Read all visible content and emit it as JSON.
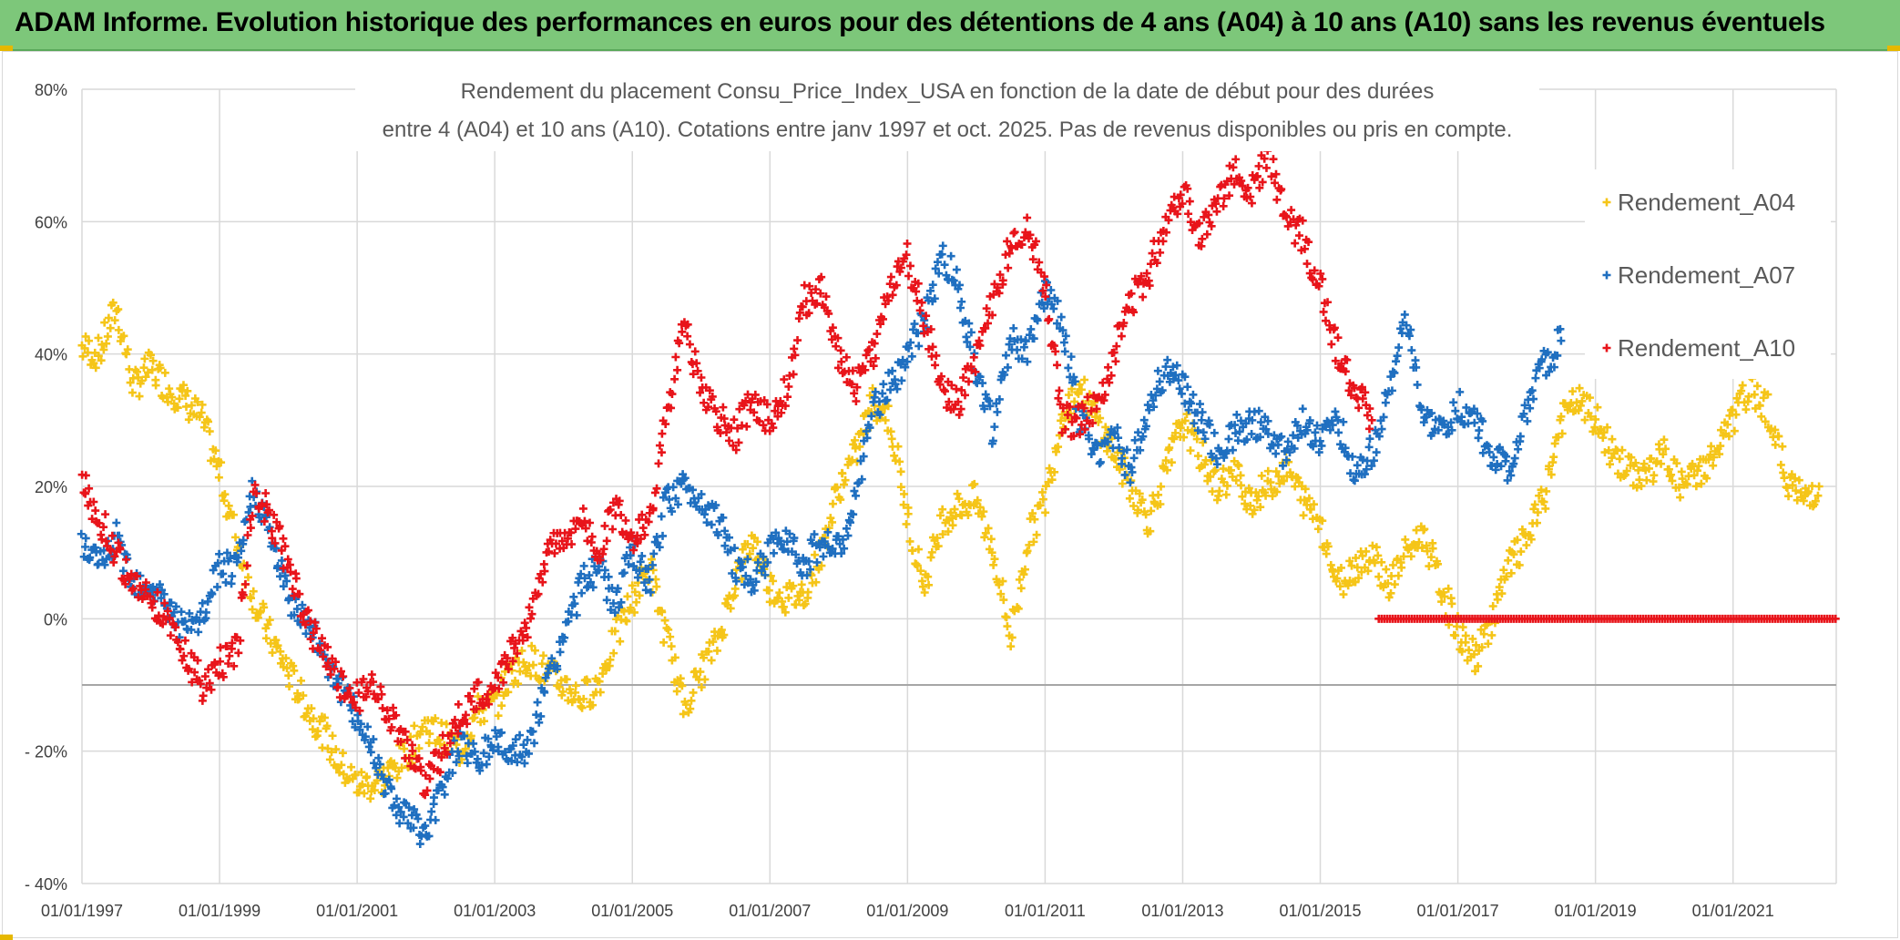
{
  "header": {
    "title": "ADAM Informe. Evolution historique des performances en euros pour des détentions de 4 ans (A04) à 10 ans (A10) sans les revenus éventuels"
  },
  "colors": {
    "A04": "#f5c518",
    "A07": "#1f6fc0",
    "A10": "#e8141a",
    "banner": "#7dc77a",
    "grid": "#d9d9d9"
  },
  "chart_data": {
    "type": "scatter",
    "title_line1": "Rendement du placement Consu_Price_Index_USA en fonction de la date de début pour des durées",
    "title_line2": "entre 4 (A04) et 10 ans (A10). Cotations entre janv 1997 et oct. 2025. Pas de revenus disponibles ou pris en compte.",
    "xlabel": "",
    "ylabel": "",
    "xlim": [
      1997.0,
      2022.5
    ],
    "ylim": [
      -40,
      80
    ],
    "grid": true,
    "legend_position": "right",
    "marker": "+",
    "x_ticks": [
      {
        "x": 1997,
        "label": "01/01/1997"
      },
      {
        "x": 1999,
        "label": "01/01/1999"
      },
      {
        "x": 2001,
        "label": "01/01/2001"
      },
      {
        "x": 2003,
        "label": "01/01/2003"
      },
      {
        "x": 2005,
        "label": "01/01/2005"
      },
      {
        "x": 2007,
        "label": "01/01/2007"
      },
      {
        "x": 2009,
        "label": "01/01/2009"
      },
      {
        "x": 2011,
        "label": "01/01/2011"
      },
      {
        "x": 2013,
        "label": "01/01/2013"
      },
      {
        "x": 2015,
        "label": "01/01/2015"
      },
      {
        "x": 2017,
        "label": "01/01/2017"
      },
      {
        "x": 2019,
        "label": "01/01/2019"
      },
      {
        "x": 2021,
        "label": "01/01/2021"
      }
    ],
    "y_ticks": [
      {
        "y": 80,
        "label": "80%"
      },
      {
        "y": 60,
        "label": "60%"
      },
      {
        "y": 40,
        "label": "40%"
      },
      {
        "y": 20,
        "label": "20%"
      },
      {
        "y": 0,
        "label": "0%"
      },
      {
        "y": -20,
        "label": "- 20%"
      },
      {
        "y": -40,
        "label": "- 40%"
      }
    ],
    "reference_line_y": -10,
    "series": [
      {
        "name": "Rendement_A04",
        "color": "#f5c518",
        "x": [
          1997.0,
          1997.25,
          1997.5,
          1997.75,
          1998.0,
          1998.25,
          1998.5,
          1998.75,
          1999.0,
          1999.25,
          1999.5,
          1999.75,
          2000.0,
          2000.25,
          2000.5,
          2000.75,
          2001.0,
          2001.25,
          2001.5,
          2001.75,
          2002.0,
          2002.25,
          2002.5,
          2002.75,
          2003.0,
          2003.25,
          2003.5,
          2003.75,
          2004.0,
          2004.25,
          2004.5,
          2004.75,
          2005.0,
          2005.25,
          2005.5,
          2005.75,
          2006.0,
          2006.25,
          2006.5,
          2006.75,
          2007.0,
          2007.25,
          2007.5,
          2007.75,
          2008.0,
          2008.25,
          2008.5,
          2008.75,
          2009.0,
          2009.25,
          2009.5,
          2009.75,
          2010.0,
          2010.25,
          2010.5,
          2010.75,
          2011.0,
          2011.25,
          2011.5,
          2011.75,
          2012.0,
          2012.25,
          2012.5,
          2012.75,
          2013.0,
          2013.25,
          2013.5,
          2013.75,
          2014.0,
          2014.25,
          2014.5,
          2014.75,
          2015.0,
          2015.25,
          2015.5,
          2015.75,
          2016.0,
          2016.25,
          2016.5,
          2016.75,
          2017.0,
          2017.25,
          2017.5,
          2017.75,
          2018.0,
          2018.25,
          2018.5,
          2018.75,
          2019.0,
          2019.25,
          2019.5,
          2019.75,
          2020.0,
          2020.25,
          2020.5,
          2020.75,
          2021.0,
          2021.25,
          2021.5,
          2021.75,
          2022.0,
          2022.25
        ],
        "values": [
          41,
          40,
          47,
          35,
          38,
          35,
          33,
          30,
          22,
          12,
          3,
          -3,
          -8,
          -13,
          -17,
          -22,
          -25,
          -25,
          -23,
          -20,
          -16,
          -18,
          -20,
          -14,
          -13,
          -8,
          -6,
          -8,
          -10,
          -12,
          -10,
          -3,
          3,
          8,
          -3,
          -13,
          -8,
          -3,
          6,
          12,
          5,
          3,
          4,
          10,
          20,
          25,
          33,
          30,
          15,
          5,
          15,
          17,
          18,
          10,
          -3,
          12,
          18,
          31,
          35,
          30,
          25,
          20,
          15,
          22,
          30,
          25,
          20,
          22,
          18,
          20,
          23,
          18,
          15,
          5,
          8,
          10,
          5,
          10,
          13,
          5,
          -2,
          -6,
          0,
          8,
          12,
          18,
          30,
          33,
          30,
          25,
          22,
          22,
          25,
          20,
          22,
          25,
          30,
          35,
          32,
          22,
          18,
          20
        ]
      },
      {
        "name": "Rendement_A07",
        "color": "#1f6fc0",
        "x": [
          1997.0,
          1997.25,
          1997.5,
          1997.75,
          1998.0,
          1998.25,
          1998.5,
          1998.75,
          1999.0,
          1999.25,
          1999.5,
          1999.75,
          2000.0,
          2000.25,
          2000.5,
          2000.75,
          2001.0,
          2001.25,
          2001.5,
          2001.75,
          2002.0,
          2002.25,
          2002.5,
          2002.75,
          2003.0,
          2003.25,
          2003.5,
          2003.75,
          2004.0,
          2004.25,
          2004.5,
          2004.75,
          2005.0,
          2005.25,
          2005.5,
          2005.75,
          2006.0,
          2006.25,
          2006.5,
          2006.75,
          2007.0,
          2007.25,
          2007.5,
          2007.75,
          2008.0,
          2008.25,
          2008.5,
          2008.75,
          2009.0,
          2009.25,
          2009.5,
          2009.75,
          2010.0,
          2010.25,
          2010.5,
          2010.75,
          2011.0,
          2011.25,
          2011.5,
          2011.75,
          2012.0,
          2012.25,
          2012.5,
          2012.75,
          2013.0,
          2013.25,
          2013.5,
          2013.75,
          2014.0,
          2014.25,
          2014.5,
          2014.75,
          2015.0,
          2015.25,
          2015.5,
          2015.75,
          2016.0,
          2016.25,
          2016.5,
          2016.75,
          2017.0,
          2017.25,
          2017.5,
          2017.75,
          2018.0,
          2018.25,
          2018.5
        ],
        "values": [
          11,
          8,
          12,
          6,
          5,
          2,
          -2,
          0,
          8,
          7,
          20,
          12,
          3,
          0,
          -5,
          -10,
          -15,
          -20,
          -27,
          -30,
          -33,
          -25,
          -18,
          -22,
          -18,
          -20,
          -20,
          -10,
          -3,
          5,
          8,
          2,
          10,
          5,
          18,
          20,
          18,
          15,
          8,
          6,
          10,
          13,
          8,
          12,
          10,
          18,
          32,
          35,
          40,
          45,
          55,
          50,
          38,
          28,
          42,
          40,
          50,
          45,
          30,
          25,
          28,
          22,
          32,
          38,
          35,
          30,
          25,
          28,
          30,
          28,
          25,
          30,
          27,
          30,
          22,
          25,
          35,
          45,
          30,
          28,
          32,
          30,
          25,
          22,
          32,
          38,
          42
        ]
      },
      {
        "name": "Rendement_A10",
        "color": "#e8141a",
        "x": [
          1997.0,
          1997.25,
          1997.5,
          1997.75,
          1998.0,
          1998.25,
          1998.5,
          1998.75,
          1999.0,
          1999.25,
          1999.5,
          1999.75,
          2000.0,
          2000.25,
          2000.5,
          2000.75,
          2001.0,
          2001.25,
          2001.5,
          2001.75,
          2002.0,
          2002.25,
          2002.5,
          2002.75,
          2003.0,
          2003.25,
          2003.5,
          2003.75,
          2004.0,
          2004.25,
          2004.5,
          2004.75,
          2005.0,
          2005.25,
          2005.5,
          2005.75,
          2006.0,
          2006.25,
          2006.5,
          2006.75,
          2007.0,
          2007.25,
          2007.5,
          2007.75,
          2008.0,
          2008.25,
          2008.5,
          2008.75,
          2009.0,
          2009.25,
          2009.5,
          2009.75,
          2010.0,
          2010.25,
          2010.5,
          2010.75,
          2011.0,
          2011.25,
          2011.5,
          2011.75,
          2012.0,
          2012.25,
          2012.5,
          2012.75,
          2013.0,
          2013.25,
          2013.5,
          2013.75,
          2014.0,
          2014.25,
          2014.5,
          2014.75,
          2015.0,
          2015.25,
          2015.5,
          2015.75
        ],
        "values": [
          21,
          15,
          10,
          5,
          3,
          0,
          -5,
          -10,
          -7,
          -5,
          20,
          15,
          8,
          0,
          -5,
          -10,
          -12,
          -10,
          -15,
          -20,
          -25,
          -20,
          -15,
          -12,
          -10,
          -5,
          0,
          10,
          12,
          15,
          10,
          17,
          12,
          15,
          30,
          45,
          35,
          30,
          28,
          33,
          30,
          35,
          48,
          50,
          40,
          35,
          40,
          50,
          55,
          45,
          35,
          32,
          40,
          48,
          57,
          60,
          50,
          30,
          30,
          32,
          40,
          48,
          52,
          60,
          65,
          58,
          62,
          68,
          65,
          70,
          60,
          58,
          50,
          40,
          35,
          30
        ]
      },
      {
        "name": "Rendement_A10 (flat)",
        "color": "#e8141a",
        "flat": {
          "from": 2015.85,
          "to": 2022.5,
          "step": 0.04,
          "value": 0
        }
      }
    ],
    "legend": [
      {
        "name": "Rendement_A04",
        "color": "#f5c518"
      },
      {
        "name": "Rendement_A07",
        "color": "#1f6fc0"
      },
      {
        "name": "Rendement_A10",
        "color": "#e8141a"
      }
    ]
  }
}
